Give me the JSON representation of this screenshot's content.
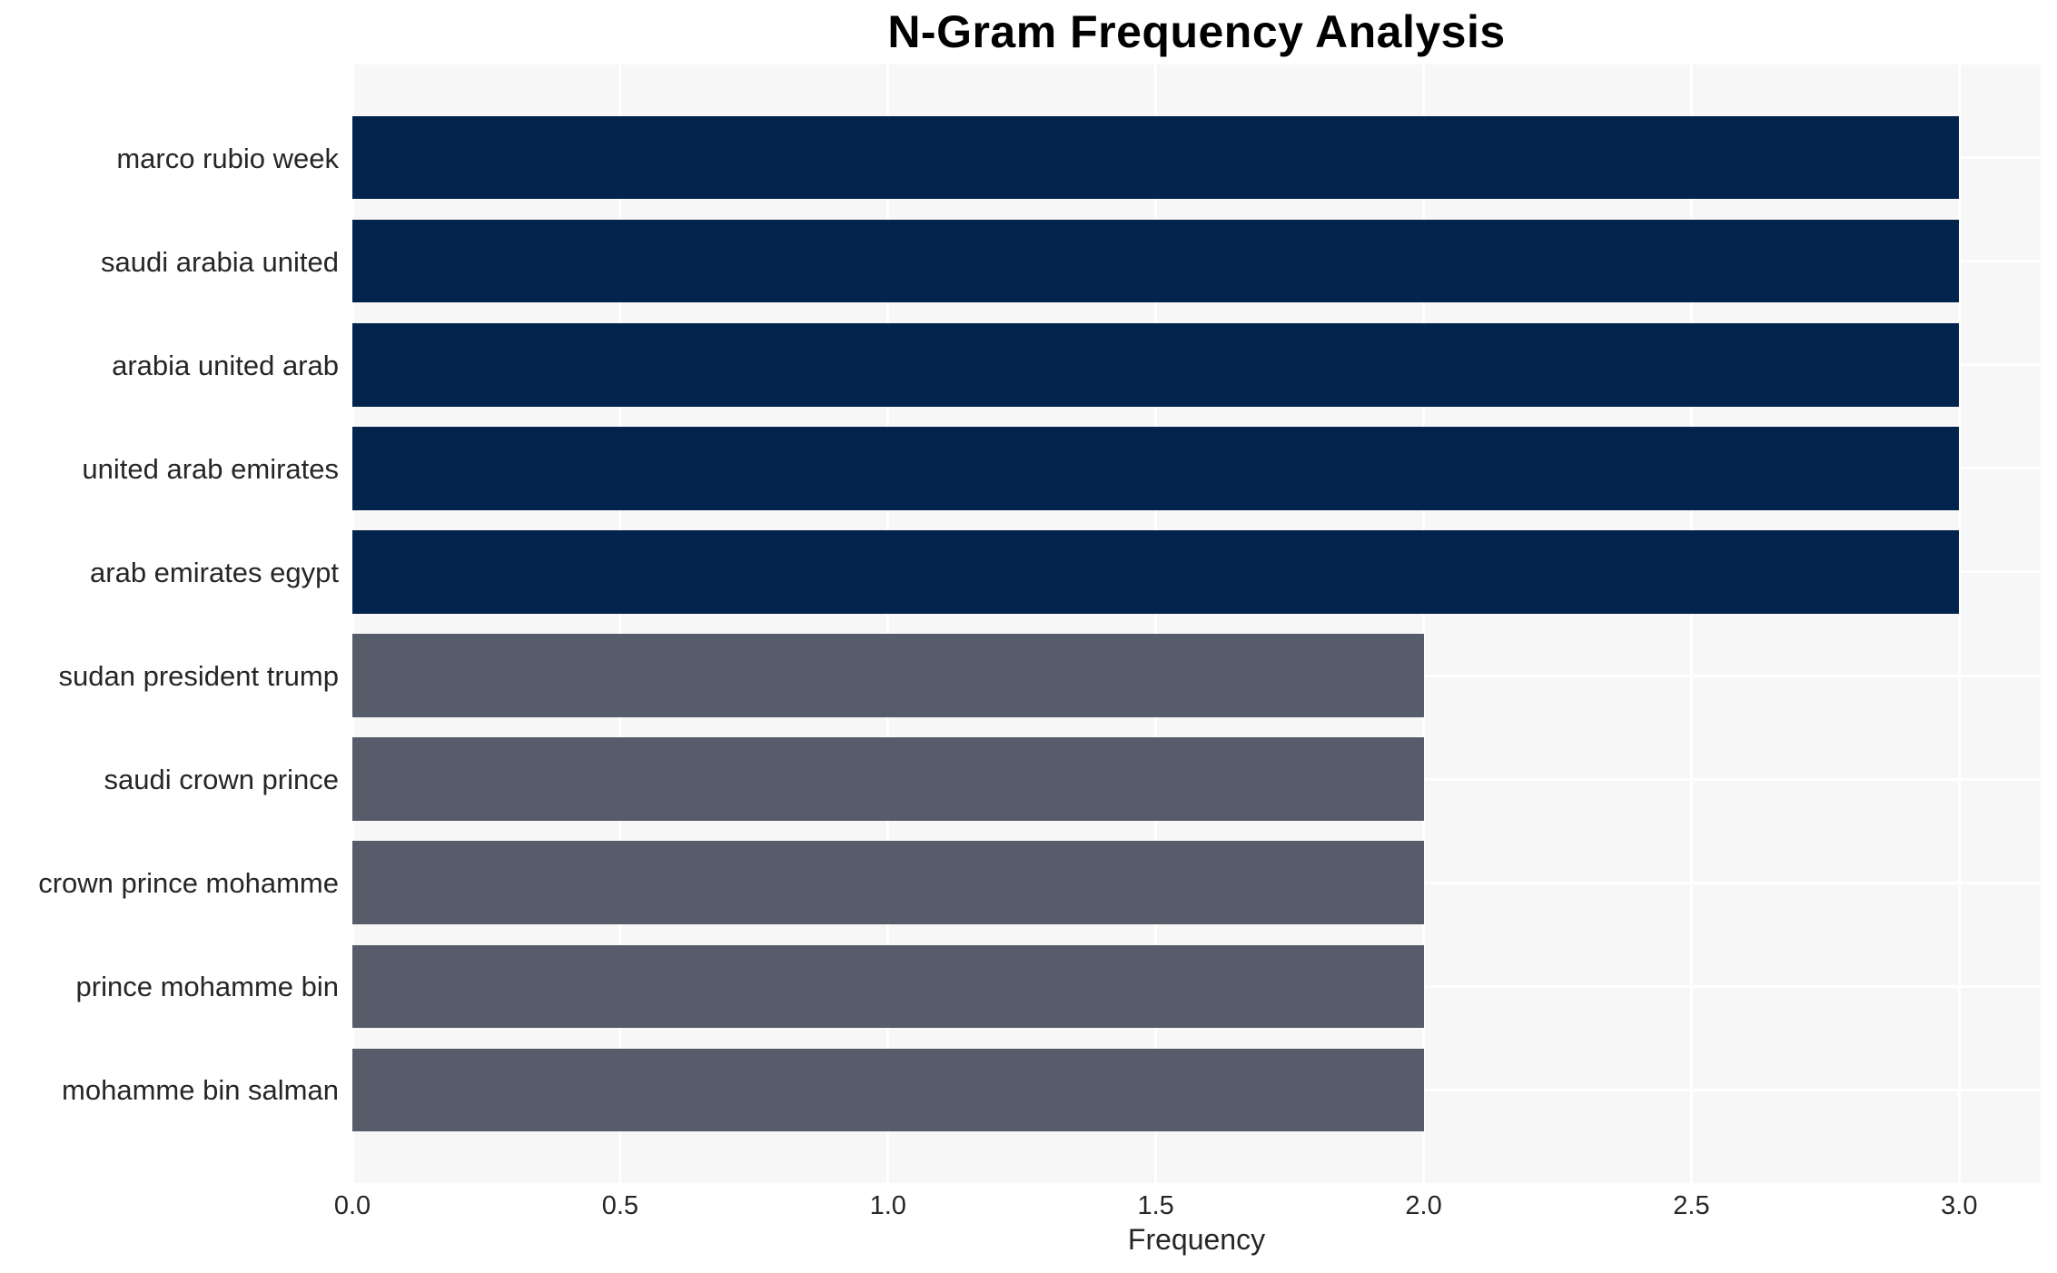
{
  "chart_data": {
    "type": "bar",
    "orientation": "horizontal",
    "title": "N-Gram Frequency Analysis",
    "xlabel": "Frequency",
    "ylabel": "",
    "categories": [
      "marco rubio week",
      "saudi arabia united",
      "arabia united arab",
      "united arab emirates",
      "arab emirates egypt",
      "sudan president trump",
      "saudi crown prince",
      "crown prince mohamme",
      "prince mohamme bin",
      "mohamme bin salman"
    ],
    "values": [
      3,
      3,
      3,
      3,
      3,
      2,
      2,
      2,
      2,
      2
    ],
    "bar_colors": [
      "#02234c",
      "#02234c",
      "#02234c",
      "#02234c",
      "#02234c",
      "#565c6a",
      "#565c6a",
      "#565c6a",
      "#565c6a",
      "#565c6a"
    ],
    "xlim": [
      0,
      3.152
    ],
    "x_tick_values": [
      0,
      0.5,
      1,
      1.5,
      2,
      2.5,
      3
    ],
    "x_tick_labels": [
      "0.0",
      "0.5",
      "1.0",
      "1.5",
      "2.0",
      "2.5",
      "3.0"
    ],
    "grid": true,
    "legend": false,
    "colors": {
      "plot_background": "#f7f7f7",
      "grid_line": "#ffffff",
      "tick_text": "#262626",
      "title_text": "#000000"
    }
  }
}
